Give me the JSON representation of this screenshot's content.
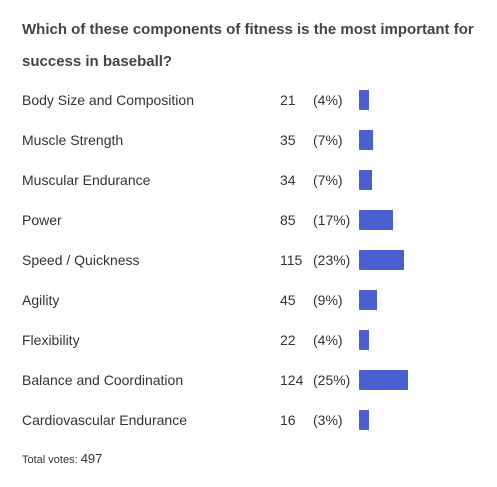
{
  "question": "Which of these components of fitness is the most important for success in baseball?",
  "chart_data": {
    "type": "bar",
    "categories": [
      "Body Size and Composition",
      "Muscle Strength",
      "Muscular Endurance",
      "Power",
      "Speed / Quickness",
      "Agility",
      "Flexibility",
      "Balance and Coordination",
      "Cardiovascular Endurance"
    ],
    "values": [
      21,
      35,
      34,
      85,
      115,
      45,
      22,
      124,
      16
    ],
    "percent_labels": [
      "(4%)",
      "(7%)",
      "(7%)",
      "(17%)",
      "(23%)",
      "(9%)",
      "(4%)",
      "(25%)",
      "(3%)"
    ],
    "bar_color": "#4a5fd0",
    "grid": false
  },
  "total": {
    "label": "Total votes:",
    "value": "497"
  }
}
